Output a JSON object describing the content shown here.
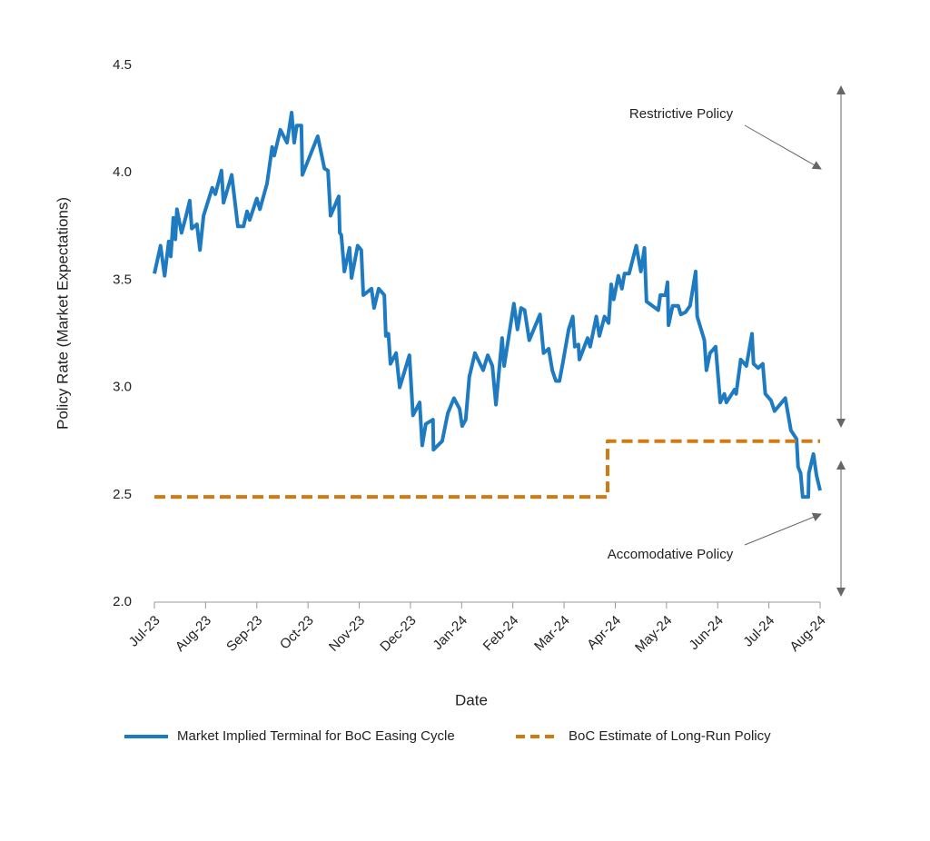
{
  "chart_data": {
    "type": "line",
    "xlabel": "Date",
    "ylabel": "Policy Rate (Market Expectations)",
    "xlim": [
      0,
      13
    ],
    "xticks": [
      {
        "value": 0,
        "label": "Jul-23"
      },
      {
        "value": 1,
        "label": "Aug-23"
      },
      {
        "value": 2,
        "label": "Sep-23"
      },
      {
        "value": 3,
        "label": "Oct-23"
      },
      {
        "value": 4,
        "label": "Nov-23"
      },
      {
        "value": 5,
        "label": "Dec-23"
      },
      {
        "value": 6,
        "label": "Jan-24"
      },
      {
        "value": 7,
        "label": "Feb-24"
      },
      {
        "value": 8,
        "label": "Mar-24"
      },
      {
        "value": 9,
        "label": "Apr-24"
      },
      {
        "value": 10,
        "label": "May-24"
      },
      {
        "value": 11,
        "label": "Jun-24"
      },
      {
        "value": 12,
        "label": "Jul-24"
      },
      {
        "value": 13,
        "label": "Aug-24"
      }
    ],
    "ylim": [
      2,
      4.5
    ],
    "yticks": [
      {
        "value": 2,
        "label": "2.0"
      },
      2.5,
      {
        "value": 3,
        "label": "3.0"
      },
      3.5,
      {
        "value": 4,
        "label": "4.0"
      },
      4.5
    ],
    "annotations": [
      "Restrictive Policy",
      "Accomodative Policy"
    ],
    "series": [
      {
        "name": "Market Implied Terminal for BoC Easing Cycle",
        "color": "#1f7bc1",
        "dash": false,
        "x": [
          0,
          0.12,
          0.2,
          0.28,
          0.32,
          0.37,
          0.41,
          0.44,
          0.53,
          0.62,
          0.69,
          0.73,
          0.83,
          0.89,
          0.96,
          1.13,
          1.19,
          1.31,
          1.35,
          1.51,
          1.63,
          1.74,
          1.81,
          1.86,
          2.0,
          2.06,
          2.2,
          2.3,
          2.34,
          2.46,
          2.59,
          2.68,
          2.73,
          2.78,
          2.87,
          2.89,
          3.19,
          3.32,
          3.39,
          3.44,
          3.6,
          3.62,
          3.65,
          3.71,
          3.81,
          3.85,
          3.97,
          4.04,
          4.08,
          4.24,
          4.29,
          4.38,
          4.49,
          4.52,
          4.57,
          4.61,
          4.72,
          4.79,
          4.98,
          5.05,
          5.18,
          5.23,
          5.3,
          5.44,
          5.45,
          5.62,
          5.73,
          5.85,
          5.96,
          6.01,
          6.08,
          6.15,
          6.26,
          6.42,
          6.51,
          6.6,
          6.67,
          6.79,
          6.83,
          7.02,
          7.09,
          7.16,
          7.23,
          7.32,
          7.53,
          7.6,
          7.7,
          7.77,
          7.84,
          7.91,
          7.98,
          8.09,
          8.17,
          8.21,
          8.28,
          8.3,
          8.46,
          8.51,
          8.63,
          8.69,
          8.79,
          8.87,
          8.92,
          8.97,
          9.06,
          9.13,
          9.18,
          9.27,
          9.41,
          9.5,
          9.57,
          9.61,
          9.84,
          9.88,
          9.98,
          10.02,
          10.04,
          10.12,
          10.23,
          10.28,
          10.37,
          10.46,
          10.57,
          10.6,
          10.74,
          10.78,
          10.85,
          10.96,
          11.05,
          11.13,
          11.17,
          11.33,
          11.36,
          11.45,
          11.56,
          11.67,
          11.7,
          11.79,
          11.88,
          11.93,
          12.04,
          12.11,
          12.32,
          12.43,
          12.54,
          12.57,
          12.62,
          12.66,
          12.77,
          12.78,
          12.87,
          12.93,
          13.0
        ],
        "values": [
          3.53,
          3.66,
          3.52,
          3.68,
          3.61,
          3.79,
          3.69,
          3.83,
          3.72,
          3.8,
          3.87,
          3.74,
          3.76,
          3.64,
          3.8,
          3.93,
          3.9,
          4.01,
          3.86,
          3.99,
          3.75,
          3.75,
          3.82,
          3.78,
          3.88,
          3.83,
          3.95,
          4.12,
          4.08,
          4.2,
          4.14,
          4.28,
          4.14,
          4.22,
          4.22,
          3.99,
          4.17,
          4.02,
          4.01,
          3.8,
          3.89,
          3.72,
          3.71,
          3.54,
          3.65,
          3.51,
          3.66,
          3.64,
          3.43,
          3.46,
          3.37,
          3.46,
          3.43,
          3.24,
          3.25,
          3.11,
          3.16,
          3.0,
          3.15,
          2.87,
          2.93,
          2.73,
          2.83,
          2.85,
          2.71,
          2.75,
          2.88,
          2.95,
          2.9,
          2.82,
          2.85,
          3.05,
          3.16,
          3.08,
          3.15,
          3.1,
          2.92,
          3.23,
          3.1,
          3.39,
          3.27,
          3.37,
          3.36,
          3.22,
          3.34,
          3.16,
          3.18,
          3.08,
          3.03,
          3.03,
          3.12,
          3.27,
          3.33,
          3.19,
          3.2,
          3.13,
          3.23,
          3.19,
          3.33,
          3.24,
          3.33,
          3.3,
          3.48,
          3.41,
          3.52,
          3.46,
          3.53,
          3.53,
          3.66,
          3.54,
          3.65,
          3.4,
          3.36,
          3.43,
          3.43,
          3.49,
          3.29,
          3.38,
          3.38,
          3.34,
          3.35,
          3.38,
          3.54,
          3.33,
          3.22,
          3.08,
          3.16,
          3.19,
          2.93,
          2.97,
          2.93,
          2.99,
          2.97,
          3.13,
          3.1,
          3.25,
          3.11,
          3.09,
          3.11,
          2.97,
          2.94,
          2.89,
          2.95,
          2.8,
          2.76,
          2.63,
          2.6,
          2.49,
          2.49,
          2.6,
          2.69,
          2.59,
          2.52
        ]
      },
      {
        "name": "BoC Estimate of Long-Run Policy",
        "color": "#d07a12",
        "dash": true,
        "x": [
          0,
          8.85,
          8.85,
          13
        ],
        "values": [
          2.49,
          2.49,
          2.75,
          2.75
        ]
      }
    ]
  }
}
